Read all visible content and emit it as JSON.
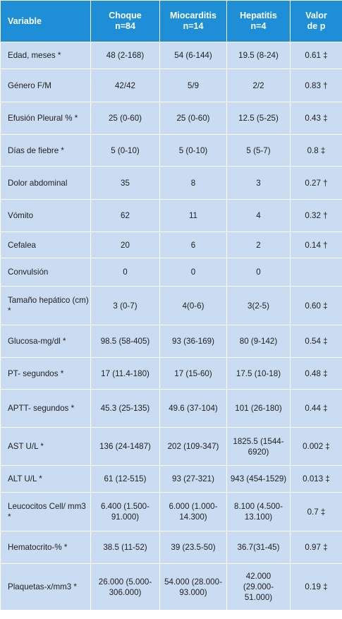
{
  "headers": [
    [
      "Variable"
    ],
    [
      "Choque",
      "n=84"
    ],
    [
      "Miocarditis",
      "n=14"
    ],
    [
      "Hepatitis",
      "n=4"
    ],
    [
      "Valor",
      "de p"
    ]
  ],
  "rows": [
    {
      "cells": [
        "Edad, meses *",
        "48 (2-168)",
        "54 (6-144)",
        "19.5 (8-24)",
        "0.61 ‡"
      ],
      "height": 38
    },
    {
      "cells": [
        "Género F/M",
        "42/42",
        "5/9",
        "2/2",
        "0.83 †"
      ],
      "height": 47
    },
    {
      "cells": [
        "Efusión Pleural % *",
        "25 (0-60)",
        "25 (0-60)",
        "12.5 (5-25)",
        "0.43 ‡"
      ],
      "height": 46
    },
    {
      "cells": [
        "Días de fiebre *",
        "5 (0-10)",
        "5 (0-10)",
        "5 (5-7)",
        "0.8 ‡"
      ],
      "height": 45
    },
    {
      "cells": [
        "Dolor abdominal",
        "35",
        "8",
        "3",
        "0.27 †"
      ],
      "height": 47
    },
    {
      "cells": [
        "Vómito",
        "62",
        "11",
        "4",
        "0.32 †"
      ],
      "height": 46
    },
    {
      "cells": [
        "Cefalea",
        "20",
        "6",
        "2",
        "0.14 †"
      ],
      "height": 37
    },
    {
      "cells": [
        "Convulsión",
        "0",
        "0",
        "0",
        ""
      ],
      "height": 40
    },
    {
      "cells": [
        "Tamaño hepático (cm) *",
        "3 (0-7)",
        "4(0-6)",
        "3(2-5)",
        "0.60 ‡"
      ],
      "height": 55
    },
    {
      "cells": [
        "Glucosa-mg/dl *",
        "98.5 (58-405)",
        "93 (36-169)",
        "80 (9-142)",
        "0.54 ‡"
      ],
      "height": 46
    },
    {
      "cells": [
        "PT- segundos *",
        "17 (11.4-180)",
        "17 (15-60)",
        "17.5 (10-18)",
        "0.48 ‡"
      ],
      "height": 45
    },
    {
      "cells": [
        "APTT- segundos *",
        "45.3 (25-135)",
        "49.6 (37-104)",
        "101 (26-180)",
        "0.44 ‡"
      ],
      "height": 54
    },
    {
      "cells": [
        "AST U/L *",
        "136 (24-1487)",
        "202 (109-347)",
        "1825.5 (1544-6920)",
        "0.002 ‡"
      ],
      "height": 54
    },
    {
      "cells": [
        "ALT U/L *",
        "61 (12-515)",
        "93 (27-321)",
        "943 (454-1529)",
        "0.013 ‡"
      ],
      "height": 38
    },
    {
      "cells": [
        "Leucocitos Cell/ mm3 *",
        "6.400 (1.500-91.000)",
        "6.000 (1.000-14.300)",
        "8.100 (4.500-13.100)",
        "0.7 ‡"
      ],
      "height": 55
    },
    {
      "cells": [
        "Hematocrito-% *",
        "38.5 (11-52)",
        "39 (23.5-50)",
        "36.7(31-45)",
        "0.97 ‡"
      ],
      "height": 46
    },
    {
      "cells": [
        "Plaquetas-x/mm3 *",
        "26.000 (5.000-306.000)",
        "54.000 (28.000-93.000)",
        "42.000 (29.000-51.000)",
        "0.19 ‡"
      ],
      "height": 66
    }
  ]
}
